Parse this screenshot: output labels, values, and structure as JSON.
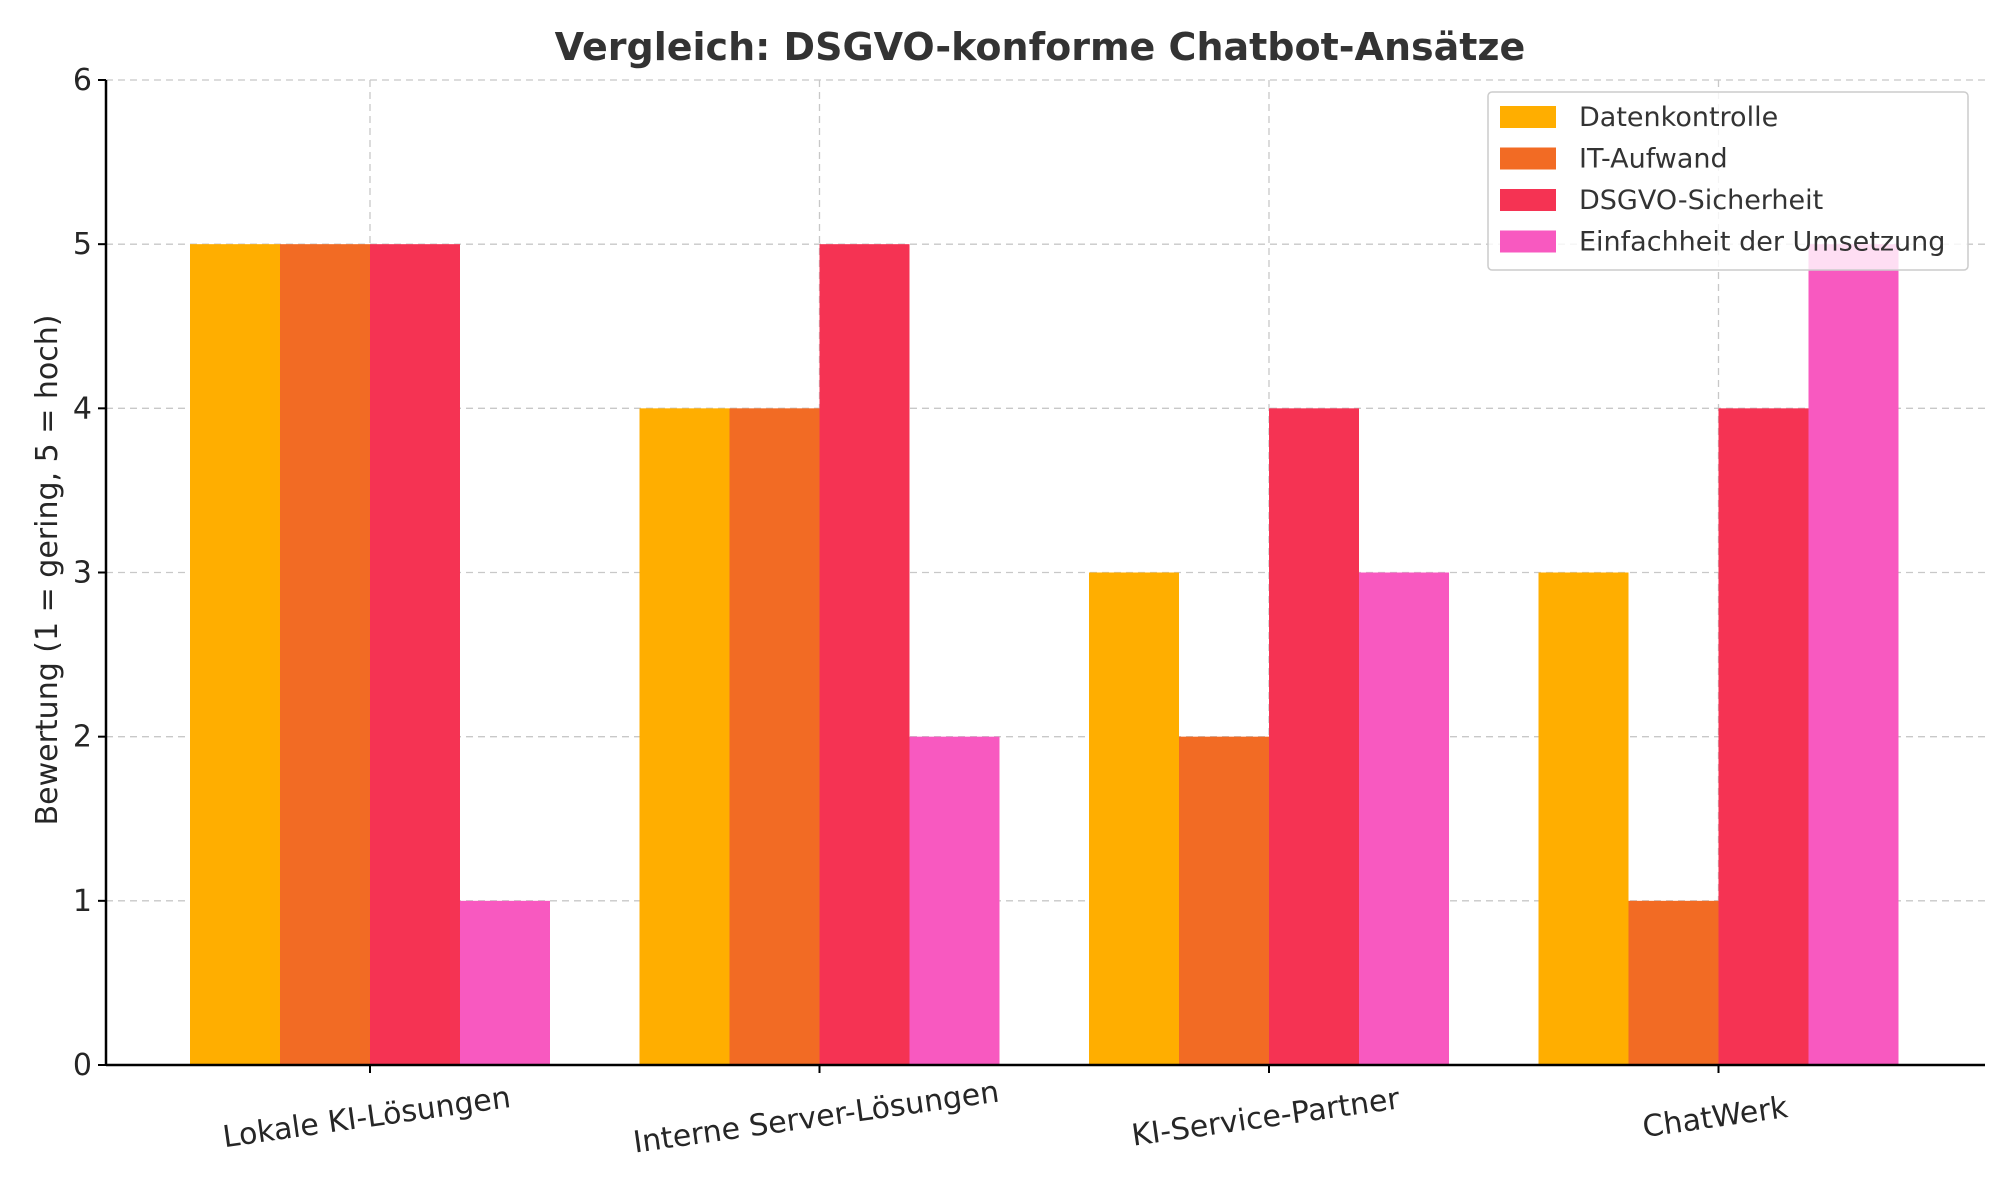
{
  "chart_data": {
    "type": "bar",
    "title": "Vergleich: DSGVO-konforme Chatbot-Ansätze",
    "xlabel": "",
    "ylabel": "Bewertung (1 = gering, 5 = hoch)",
    "ylim": [
      0,
      6
    ],
    "yticks": [
      "0",
      "1",
      "2",
      "3",
      "4",
      "5",
      "6"
    ],
    "grid": true,
    "legend_position": "top-right",
    "categories": [
      "Lokale KI-Lösungen",
      "Interne Server-Lösungen",
      "KI-Service-Partner",
      "ChatWerk"
    ],
    "series": [
      {
        "name": "Datenkontrolle",
        "color": "#FFAE00",
        "values": [
          5,
          4,
          3,
          3
        ]
      },
      {
        "name": "IT-Aufwand",
        "color": "#F26B24",
        "values": [
          5,
          4,
          2,
          1
        ]
      },
      {
        "name": "DSGVO-Sicherheit",
        "color": "#F53353",
        "values": [
          5,
          5,
          4,
          4
        ]
      },
      {
        "name": "Einfachheit der Umsetzung",
        "color": "#F859C0",
        "values": [
          1,
          2,
          3,
          5
        ]
      }
    ]
  }
}
